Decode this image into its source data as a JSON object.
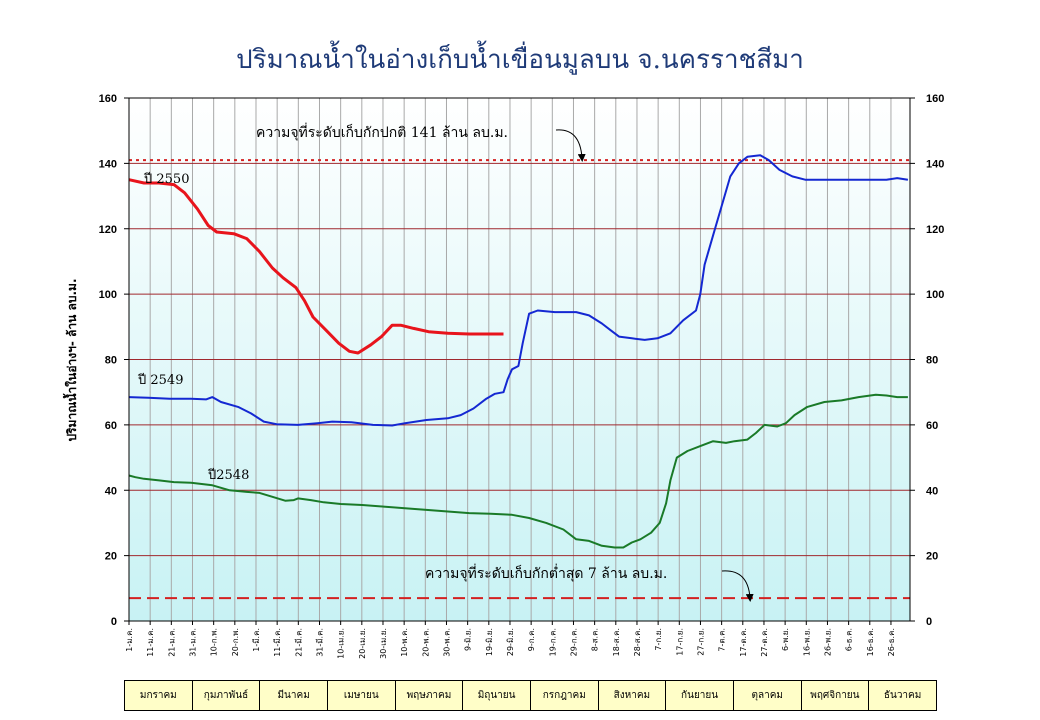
{
  "chart_data": {
    "type": "line",
    "title": "ปริมาณน้ำในอ่างเก็บน้ำเขื่อนมูลบน จ.นครราชสีมา",
    "ylabel": "ปริมาณน้ำในอ่างฯ- ล้าน ลบ.ม.",
    "xlabel": "",
    "ylim": [
      0,
      160
    ],
    "y_ticks": [
      "0",
      "20",
      "40",
      "60",
      "80",
      "100",
      "120",
      "140",
      "160"
    ],
    "x_ticks": [
      "1-ม.ค.",
      "11-ม.ค.",
      "21-ม.ค.",
      "31-ม.ค.",
      "10-ก.พ.",
      "20-ก.พ.",
      "1-มี.ค.",
      "11-มี.ค.",
      "21-มี.ค.",
      "31-มี.ค.",
      "10-เม.ย.",
      "20-เม.ย.",
      "30-เม.ย.",
      "10-พ.ค.",
      "20-พ.ค.",
      "30-พ.ค.",
      "9-มิ.ย.",
      "19-มิ.ย.",
      "29-มิ.ย.",
      "9-ก.ค.",
      "19-ก.ค.",
      "29-ก.ค.",
      "8-ส.ค.",
      "18-ส.ค.",
      "28-ส.ค.",
      "7-ก.ย.",
      "17-ก.ย.",
      "27-ก.ย.",
      "7-ต.ค.",
      "17-ต.ค.",
      "27-ต.ค.",
      "6-พ.ย.",
      "16-พ.ย.",
      "26-พ.ย.",
      "6-ธ.ค.",
      "16-ธ.ค.",
      "26-ธ.ค."
    ],
    "grid": true,
    "x_unit": "day of year",
    "series": [
      {
        "name": "ปี 2550",
        "color": "#e8141c",
        "points": [
          [
            1,
            135
          ],
          [
            8,
            134
          ],
          [
            15,
            134
          ],
          [
            22,
            133.5
          ],
          [
            27,
            131
          ],
          [
            33,
            126
          ],
          [
            38,
            121
          ],
          [
            42,
            119
          ],
          [
            50,
            118.5
          ],
          [
            56,
            117
          ],
          [
            62,
            113
          ],
          [
            68,
            108
          ],
          [
            73,
            105
          ],
          [
            79,
            102
          ],
          [
            83,
            98
          ],
          [
            87,
            93
          ],
          [
            93,
            89
          ],
          [
            99,
            85
          ],
          [
            104,
            82.5
          ],
          [
            108,
            82
          ],
          [
            114,
            84.5
          ],
          [
            119,
            87
          ],
          [
            124,
            90.5
          ],
          [
            128,
            90.5
          ],
          [
            134,
            89.5
          ],
          [
            141,
            88.5
          ],
          [
            150,
            88
          ],
          [
            160,
            87.8
          ],
          [
            170,
            87.8
          ],
          [
            176,
            87.8
          ]
        ]
      },
      {
        "name": "ปี 2549",
        "color": "#1428d2",
        "points": [
          [
            1,
            68.5
          ],
          [
            10,
            68.3
          ],
          [
            20,
            68
          ],
          [
            30,
            68
          ],
          [
            37,
            67.8
          ],
          [
            40,
            68.5
          ],
          [
            44,
            67
          ],
          [
            52,
            65.5
          ],
          [
            58,
            63.5
          ],
          [
            64,
            61
          ],
          [
            70,
            60.2
          ],
          [
            80,
            60
          ],
          [
            89,
            60.5
          ],
          [
            96,
            61
          ],
          [
            105,
            60.8
          ],
          [
            115,
            60
          ],
          [
            124,
            59.8
          ],
          [
            130,
            60.5
          ],
          [
            140,
            61.5
          ],
          [
            150,
            62
          ],
          [
            156,
            63
          ],
          [
            162,
            65
          ],
          [
            168,
            68
          ],
          [
            172,
            69.5
          ],
          [
            176,
            70
          ],
          [
            178,
            74
          ],
          [
            180,
            77
          ],
          [
            183,
            78
          ],
          [
            185,
            85
          ],
          [
            188,
            94
          ],
          [
            192,
            95
          ],
          [
            200,
            94.5
          ],
          [
            210,
            94.5
          ],
          [
            216,
            93.5
          ],
          [
            222,
            91
          ],
          [
            226,
            89
          ],
          [
            230,
            87
          ],
          [
            236,
            86.5
          ],
          [
            242,
            86
          ],
          [
            248,
            86.5
          ],
          [
            254,
            88
          ],
          [
            260,
            92
          ],
          [
            266,
            95
          ],
          [
            268,
            100
          ],
          [
            270,
            109
          ],
          [
            274,
            118
          ],
          [
            278,
            127
          ],
          [
            282,
            136
          ],
          [
            286,
            140
          ],
          [
            290,
            142
          ],
          [
            296,
            142.5
          ],
          [
            300,
            141
          ],
          [
            305,
            138
          ],
          [
            311,
            136
          ],
          [
            317,
            135
          ],
          [
            325,
            135
          ],
          [
            335,
            135
          ],
          [
            345,
            135
          ],
          [
            355,
            135
          ],
          [
            360,
            135.5
          ],
          [
            365,
            135
          ]
        ]
      },
      {
        "name": "ปี2548",
        "color": "#1a7a28",
        "points": [
          [
            1,
            44.5
          ],
          [
            4,
            44
          ],
          [
            8,
            43.5
          ],
          [
            15,
            43
          ],
          [
            22,
            42.5
          ],
          [
            30,
            42.3
          ],
          [
            40,
            41.5
          ],
          [
            48,
            40
          ],
          [
            56,
            39.5
          ],
          [
            62,
            39.2
          ],
          [
            68,
            38
          ],
          [
            74,
            36.8
          ],
          [
            78,
            37
          ],
          [
            80,
            37.5
          ],
          [
            86,
            37
          ],
          [
            92,
            36.3
          ],
          [
            100,
            35.8
          ],
          [
            110,
            35.5
          ],
          [
            120,
            35
          ],
          [
            130,
            34.5
          ],
          [
            140,
            34
          ],
          [
            150,
            33.5
          ],
          [
            160,
            33
          ],
          [
            170,
            32.8
          ],
          [
            180,
            32.5
          ],
          [
            188,
            31.5
          ],
          [
            196,
            30
          ],
          [
            204,
            28
          ],
          [
            210,
            25
          ],
          [
            216,
            24.5
          ],
          [
            222,
            23
          ],
          [
            228,
            22.5
          ],
          [
            232,
            22.5
          ],
          [
            236,
            24
          ],
          [
            240,
            25
          ],
          [
            245,
            27
          ],
          [
            249,
            30
          ],
          [
            252,
            36
          ],
          [
            254,
            43
          ],
          [
            257,
            50
          ],
          [
            262,
            52
          ],
          [
            268,
            53.5
          ],
          [
            274,
            55
          ],
          [
            280,
            54.5
          ],
          [
            284,
            55
          ],
          [
            290,
            55.5
          ],
          [
            294,
            57.5
          ],
          [
            298,
            60
          ],
          [
            304,
            59.5
          ],
          [
            308,
            60.5
          ],
          [
            312,
            63
          ],
          [
            318,
            65.5
          ],
          [
            326,
            67
          ],
          [
            334,
            67.5
          ],
          [
            342,
            68.5
          ],
          [
            350,
            69.2
          ],
          [
            355,
            69
          ],
          [
            360,
            68.5
          ],
          [
            365,
            68.5
          ]
        ]
      }
    ],
    "reference_lines": [
      {
        "value": 141,
        "color": "#d42020",
        "style": "dotted"
      },
      {
        "value": 7,
        "color": "#d42020",
        "style": "dashed"
      }
    ],
    "annotations": [
      {
        "text": "ความจุที่ระดับเก็บกักปกติ 141 ล้าน ลบ.ม."
      },
      {
        "text": "ความจุที่ระดับเก็บกักต่ำสุด 7 ล้าน ลบ.ม."
      }
    ],
    "months": [
      "มกราคม",
      "กุมภาพันธ์",
      "มีนาคม",
      "เมษายน",
      "พฤษภาคม",
      "มิถุนายน",
      "กรกฎาคม",
      "สิงหาคม",
      "กันยายน",
      "ตุลาคม",
      "พฤศจิกายน",
      "ธันวาคม"
    ]
  }
}
